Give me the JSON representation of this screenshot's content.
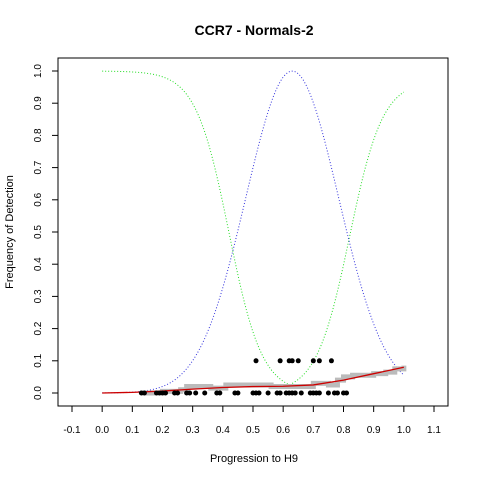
{
  "chart_data": {
    "type": "scatter",
    "title": "CCR7 - Normals-2",
    "xlabel": "Progression to H9",
    "ylabel": "Frequency of Detection",
    "xlim": [
      -0.1,
      1.1
    ],
    "ylim": [
      0.0,
      1.0
    ],
    "x_ticks": [
      "-0.1",
      "0.0",
      "0.1",
      "0.2",
      "0.3",
      "0.4",
      "0.5",
      "0.6",
      "0.7",
      "0.8",
      "0.9",
      "1.0",
      "1.1"
    ],
    "y_ticks": [
      "0.0",
      "0.1",
      "0.2",
      "0.3",
      "0.4",
      "0.5",
      "0.6",
      "0.7",
      "0.8",
      "0.9",
      "1.0"
    ],
    "grid": false,
    "series": [
      {
        "kind": "points",
        "color": "#000000",
        "x": [
          0.13,
          0.14,
          0.18,
          0.19,
          0.2,
          0.21,
          0.24,
          0.25,
          0.28,
          0.29,
          0.31,
          0.34,
          0.38,
          0.39,
          0.44,
          0.45,
          0.5,
          0.51,
          0.52,
          0.55,
          0.58,
          0.59,
          0.61,
          0.62,
          0.63,
          0.64,
          0.66,
          0.69,
          0.7,
          0.71,
          0.72,
          0.75,
          0.77,
          0.78,
          0.8,
          0.81,
          0.51,
          0.59,
          0.62,
          0.63,
          0.65,
          0.7,
          0.72,
          0.76
        ],
        "y": [
          0,
          0,
          0,
          0,
          0,
          0,
          0,
          0,
          0,
          0,
          0,
          0,
          0,
          0,
          0,
          0,
          0,
          0,
          0,
          0,
          0,
          0,
          0,
          0,
          0,
          0,
          0,
          0,
          0,
          0,
          0,
          0,
          0,
          0,
          0,
          0,
          0.1,
          0.1,
          0.1,
          0.1,
          0.1,
          0.1,
          0.1,
          0.1
        ]
      },
      {
        "kind": "step",
        "color": "#bbbbbb",
        "x": [
          0.13,
          0.2,
          0.26,
          0.28,
          0.31,
          0.36,
          0.41,
          0.44,
          0.5,
          0.56,
          0.61,
          0.66,
          0.7,
          0.75,
          0.78,
          0.8,
          0.83,
          0.86,
          0.9,
          0.94,
          0.97,
          1.0
        ],
        "y": [
          0.0,
          0.005,
          0.01,
          0.02,
          0.02,
          0.015,
          0.025,
          0.025,
          0.025,
          0.02,
          0.02,
          0.02,
          0.03,
          0.025,
          0.04,
          0.05,
          0.055,
          0.055,
          0.06,
          0.065,
          0.075,
          0.085
        ]
      },
      {
        "kind": "line",
        "color": "#cc0000",
        "x": [
          0.0,
          0.1,
          0.2,
          0.3,
          0.4,
          0.5,
          0.6,
          0.7,
          0.8,
          0.9,
          1.0
        ],
        "y": [
          0.0,
          0.002,
          0.006,
          0.012,
          0.017,
          0.02,
          0.021,
          0.025,
          0.04,
          0.06,
          0.08
        ]
      }
    ]
  }
}
